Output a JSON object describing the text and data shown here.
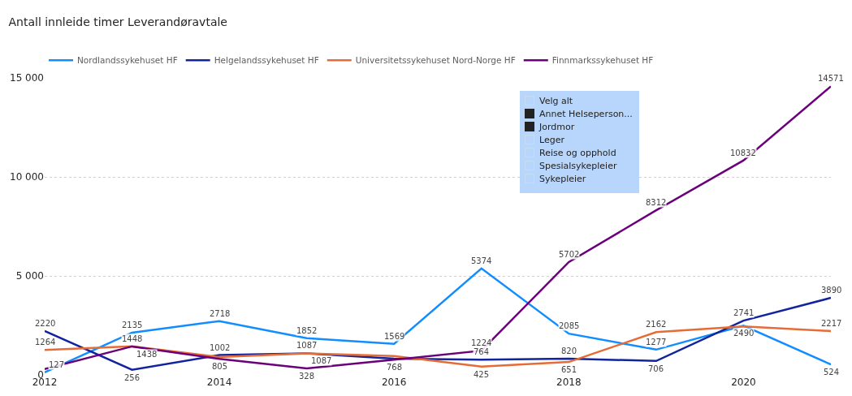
{
  "chart_data": {
    "type": "line",
    "title": "Antall innleide timer Leverandøravtale",
    "x": [
      2012,
      2013,
      2014,
      2015,
      2016,
      2017,
      2018,
      2019,
      2020,
      2021
    ],
    "series": [
      {
        "name": "Nordlandssykehuset HF",
        "color": "#118dff",
        "values": [
          127,
          2135,
          2718,
          1852,
          1569,
          5374,
          2085,
          1277,
          2490,
          524
        ],
        "value_labels": [
          "127",
          "2135",
          "2718",
          "1852",
          "1569",
          "5374",
          "2085",
          "1277",
          "2490",
          "524"
        ]
      },
      {
        "name": "Helgelandssykehuset HF",
        "color": "#12239e",
        "values": [
          2220,
          256,
          1002,
          1087,
          820,
          764,
          820,
          706,
          2741,
          3890
        ],
        "value_labels": [
          "2220",
          "256",
          "1002",
          "1087",
          null,
          "764",
          "820",
          "706",
          "2741",
          "3890"
        ]
      },
      {
        "name": "Universitetssykehuset Nord-Norge HF",
        "color": "#e66c37",
        "values": [
          1264,
          1448,
          900,
          1087,
          950,
          425,
          651,
          2162,
          2450,
          2217
        ],
        "value_labels": [
          "1264",
          "1448",
          null,
          "1087",
          null,
          "425",
          "651",
          "2162",
          null,
          "2217"
        ]
      },
      {
        "name": "Finnmarkssykehuset HF",
        "color": "#6b007b",
        "values": [
          300,
          1438,
          805,
          328,
          768,
          1224,
          5702,
          8312,
          10832,
          14571
        ],
        "value_labels": [
          null,
          "1438",
          "805",
          "328",
          "768",
          "1224",
          "5702",
          "8312",
          "10832",
          "14571"
        ]
      }
    ],
    "xlim": [
      2012,
      2021
    ],
    "xticks": [
      2012,
      2014,
      2016,
      2018,
      2020
    ],
    "ylim": [
      0,
      15000
    ],
    "yticks": [
      {
        "value": 0,
        "label": "0"
      },
      {
        "value": 5000,
        "label": "5 000"
      },
      {
        "value": 10000,
        "label": "10 000"
      },
      {
        "value": 15000,
        "label": "15 000"
      }
    ],
    "grid": "y",
    "legend": "top left",
    "marker": "none",
    "line_style": "solid",
    "annotations": [
      "Velg alt",
      "Annet Helseperson...",
      "Jordmor",
      "Leger",
      "Reise og opphold",
      "Spesialsykepleier",
      "Sykepleier"
    ]
  }
}
